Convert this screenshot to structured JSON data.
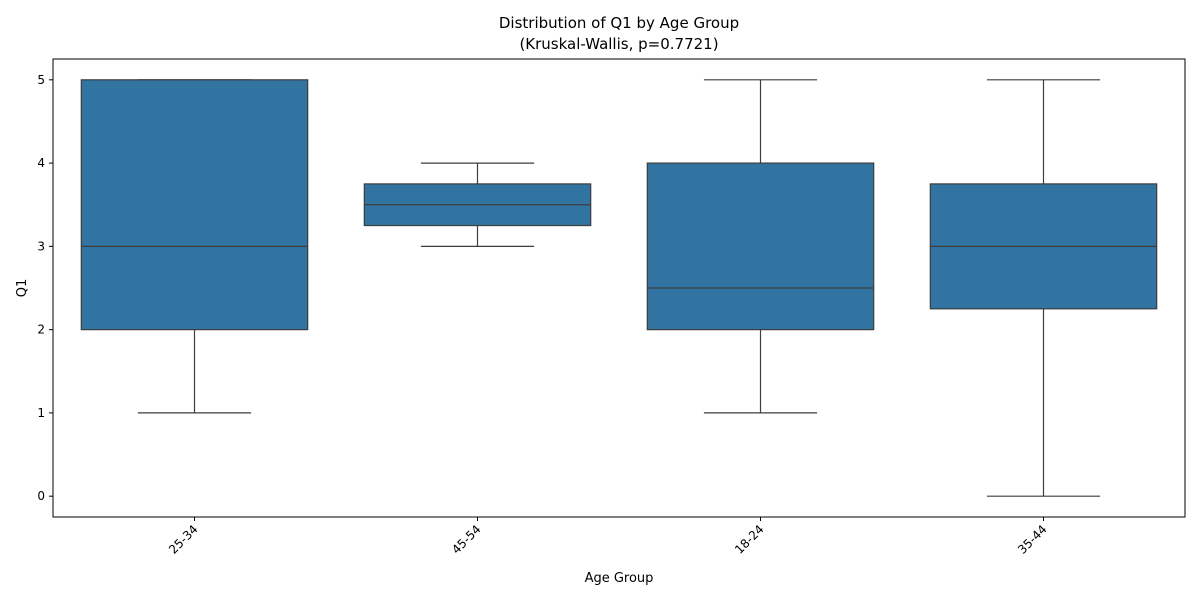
{
  "chart_data": {
    "type": "box",
    "title": "Distribution of Q1 by Age Group",
    "subtitle": "(Kruskal-Wallis, p=0.7721)",
    "xlabel": "Age Group",
    "ylabel": "Q1",
    "ylim": [
      -0.25,
      5.25
    ],
    "yticks": [
      0,
      1,
      2,
      3,
      4,
      5
    ],
    "xtick_rotation": 45,
    "grid": false,
    "legend": "none",
    "box_color": "#3274a1",
    "line_color": "#3d3d3d",
    "categories": [
      "25-34",
      "45-54",
      "18-24",
      "35-44"
    ],
    "boxes": [
      {
        "category": "25-34",
        "whisker_low": 1,
        "q1": 2,
        "median": 3,
        "q3": 5,
        "whisker_high": 5
      },
      {
        "category": "45-54",
        "whisker_low": 3,
        "q1": 3.25,
        "median": 3.5,
        "q3": 3.75,
        "whisker_high": 4
      },
      {
        "category": "18-24",
        "whisker_low": 1,
        "q1": 2,
        "median": 2.5,
        "q3": 4,
        "whisker_high": 5
      },
      {
        "category": "35-44",
        "whisker_low": 0,
        "q1": 2.25,
        "median": 3,
        "q3": 3.75,
        "whisker_high": 5
      }
    ]
  }
}
